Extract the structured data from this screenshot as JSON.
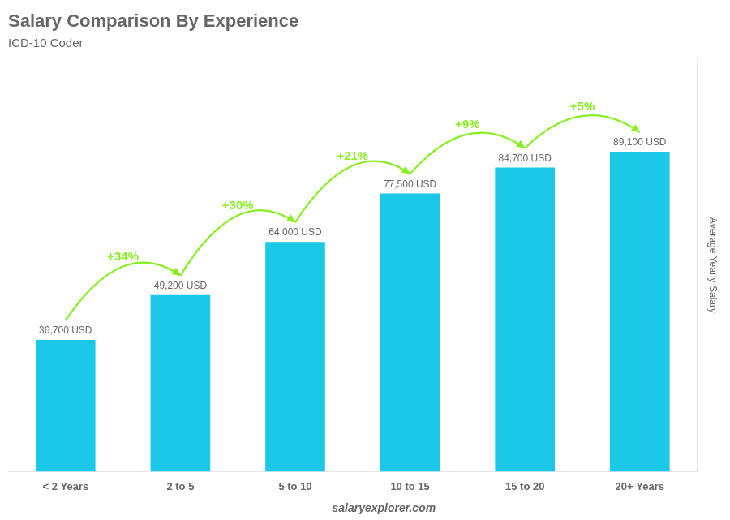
{
  "chart_data": {
    "type": "bar",
    "title": "Salary Comparison By Experience",
    "subtitle": "ICD-10 Coder",
    "categories": [
      "< 2 Years",
      "2 to 5",
      "5 to 10",
      "10 to 15",
      "15 to 20",
      "20+ Years"
    ],
    "values": [
      36700,
      49200,
      64000,
      77500,
      84700,
      89100
    ],
    "value_labels": [
      "36,700 USD",
      "49,200 USD",
      "64,000 USD",
      "77,500 USD",
      "84,700 USD",
      "89,100 USD"
    ],
    "data_labels": true,
    "color": "#1BC8E8",
    "ylabel": "Average Yearly Salary",
    "ylim": [
      0,
      115000
    ],
    "grid": false,
    "tick_labels": "x",
    "annotations": [
      {
        "text": "+34%",
        "from": "< 2 Years",
        "to": "2 to 5",
        "color": "#88ee22"
      },
      {
        "text": "+30%",
        "from": "2 to 5",
        "to": "5 to 10",
        "color": "#88ee22"
      },
      {
        "text": "+21%",
        "from": "5 to 10",
        "to": "10 to 15",
        "color": "#88ee22"
      },
      {
        "text": "+9%",
        "from": "10 to 15",
        "to": "15 to 20",
        "color": "#88ee22"
      },
      {
        "text": "+5%",
        "from": "15 to 20",
        "to": "20+ Years",
        "color": "#88ee22"
      }
    ],
    "watermark": [
      "salary",
      "explorer.com"
    ]
  }
}
